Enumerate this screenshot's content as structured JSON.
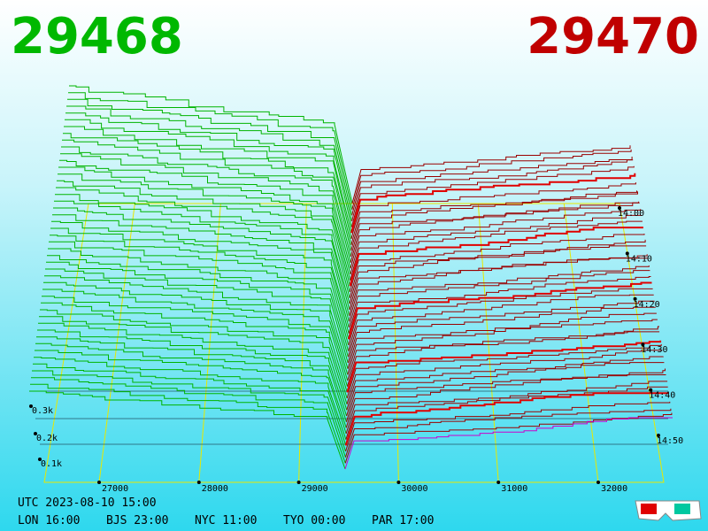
{
  "header": {
    "bid": "29468",
    "ask": "29470"
  },
  "price_axis": {
    "ticks": [
      27000,
      28000,
      29000,
      30000,
      31000,
      32000
    ]
  },
  "time_axis": {
    "ticks": [
      "14:00",
      "14:10",
      "14:20",
      "14:30",
      "14:40",
      "14:50"
    ]
  },
  "depth_axis": {
    "ticks": [
      "0.3k",
      "0.2k",
      "0.1k"
    ]
  },
  "footer": {
    "utc": "UTC 2023-08-10 15:00",
    "zones": [
      "LON 16:00",
      "BJS 23:00",
      "NYC 11:00",
      "TYO 00:00",
      "PAR 17:00"
    ]
  }
}
